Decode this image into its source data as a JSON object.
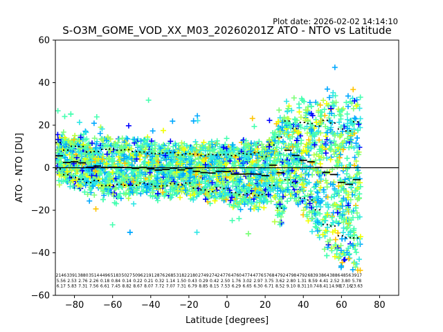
{
  "plot_date": "Plot date: 2026-02-02 14:14:10",
  "chart_data": {
    "type": "scatter",
    "title": "S-O3M_GOME_VOD_XX_M03_20260201Z ATO - NTO vs Latitude",
    "xlabel": "Latitude [degrees]",
    "ylabel": "ATO - NTO [DU]",
    "xlim": [
      -90,
      90
    ],
    "ylim": [
      -60,
      60
    ],
    "xticks": [
      -80,
      -60,
      -40,
      -20,
      0,
      20,
      40,
      60,
      80
    ],
    "yticks": [
      -60,
      -40,
      -20,
      0,
      20,
      40,
      60
    ],
    "grid": false,
    "reference_line": 0,
    "colormap": [
      "#0000ff",
      "#00a8ff",
      "#2de6e6",
      "#45ffb0",
      "#7dff7a",
      "#b8ff47",
      "#f0ff00",
      "#ffc400"
    ],
    "bin_width": 4,
    "bins_center": [
      -88,
      -84,
      -80,
      -76,
      -72,
      -68,
      -64,
      -60,
      -56,
      -52,
      -48,
      -44,
      -40,
      -36,
      -32,
      -28,
      -24,
      -20,
      -16,
      -12,
      -8,
      -4,
      0,
      4,
      8,
      12,
      16,
      20,
      24,
      28,
      32,
      36,
      40,
      44,
      48,
      52,
      56,
      60,
      64,
      68
    ],
    "mean": [
      5.6,
      2.5,
      2.8,
      2.3,
      0.2,
      0.8,
      0.1,
      0.2,
      0.2,
      0.1,
      -0.3,
      0.1,
      -0.5,
      -1.1,
      -0.8,
      -0.2,
      -1.0,
      -0.3,
      -1.7,
      -2.3,
      -2.5,
      -1.7,
      -1.8,
      -3.0,
      -3.0,
      -2.9,
      -3.0,
      -3.7,
      1.2,
      -2.3,
      8.2,
      5.8,
      3.5,
      2.8,
      0.1,
      -2.2,
      -3.2,
      -6.9,
      -7.8,
      -5.6
    ],
    "upper": [
      11.8,
      8.3,
      10.1,
      10.0,
      7.4,
      7.6,
      8.6,
      8.8,
      8.2,
      8.5,
      7.7,
      7.4,
      6.8,
      6.6,
      6.9,
      7.1,
      6.0,
      6.6,
      6.2,
      5.8,
      6.2,
      6.0,
      6.2,
      5.7,
      6.7,
      6.4,
      7.0,
      5.2,
      10.7,
      14.4,
      22.0,
      18.5,
      21.3,
      20.8,
      19.6,
      22.3,
      21.0,
      18.2,
      17.3,
      21.6
    ],
    "lower": [
      -0.6,
      -3.3,
      -4.5,
      -5.4,
      -7.0,
      -6.0,
      -8.4,
      -8.4,
      -7.8,
      -8.3,
      -8.3,
      -7.2,
      -7.8,
      -8.8,
      -8.5,
      -7.5,
      -8.0,
      -7.2,
      -9.6,
      -10.4,
      -11.2,
      -9.4,
      -9.8,
      -11.7,
      -12.7,
      -12.2,
      -13.0,
      -12.6,
      -8.3,
      -19.0,
      -5.6,
      -6.9,
      -14.3,
      -15.2,
      -19.8,
      -26.7,
      -27.4,
      -32.0,
      -32.9,
      -33.0
    ],
    "stat_rows": {
      "count": [
        "2146",
        "3391",
        "3880",
        "3514",
        "4496",
        "5183",
        "5027",
        "5096",
        "2191",
        "2876",
        "2685",
        "3182",
        "2180",
        "2749",
        "2742",
        "4776",
        "4760",
        "4774",
        "4776",
        "5768",
        "4792",
        "4798",
        "4792",
        "6839",
        "3864",
        "3886",
        "4856",
        "3917"
      ],
      "mean": [
        "5.56",
        "2.53",
        "2.76",
        "2.26",
        "0.18",
        "0.84",
        "0.14",
        "0.22",
        "0.21",
        "0.32",
        "1.14",
        "1.50",
        "0.43",
        "0.29",
        "0.42",
        "2.50",
        "1.76",
        "3.02",
        "2.97",
        "3.75",
        "3.62",
        "2.80",
        "1.31",
        "8.59",
        "4.41",
        "2.52",
        "3.80",
        "5.78"
      ],
      "std": [
        "6.17",
        "5.83",
        "7.31",
        "7.56",
        "6.61",
        "7.45",
        "8.82",
        "8.67",
        "8.07",
        "7.72",
        "7.07",
        "7.31",
        "6.79",
        "8.85",
        "8.15",
        "7.53",
        "6.29",
        "6.65",
        "6.30",
        "6.71",
        "8.52",
        "9.10",
        "8.31",
        "10.74",
        "8.41",
        "14.98",
        "17.16",
        "23.63"
      ]
    }
  }
}
